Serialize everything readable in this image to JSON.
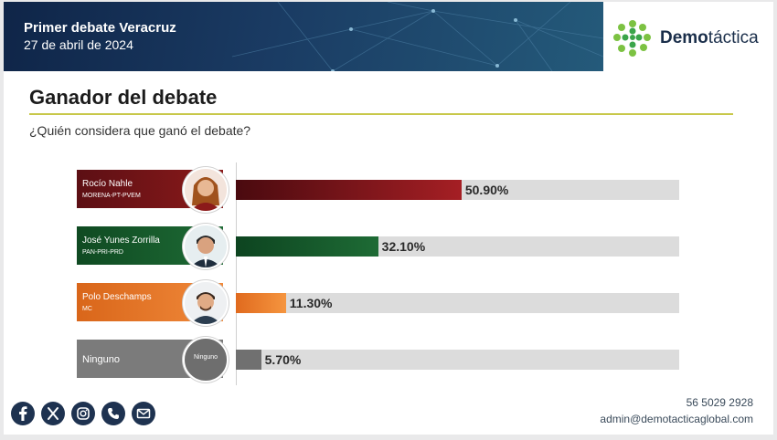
{
  "header": {
    "title": "Primer debate Veracruz",
    "date": "27 de abril de 2024",
    "logo_bold": "Demo",
    "logo_light": "táctica"
  },
  "section": {
    "title": "Ganador del debate",
    "question": "¿Quién considera que ganó el debate?"
  },
  "chart_data": {
    "type": "bar",
    "orientation": "horizontal",
    "title": "Ganador del debate",
    "subtitle": "¿Quién considera que ganó el debate?",
    "categories": [
      "Rocío Nahle",
      "José Yunes Zorrilla",
      "Polo Deschamps",
      "Ninguno"
    ],
    "parties": [
      "MORENA-PT-PVEM",
      "PAN-PRI-PRD",
      "MC",
      ""
    ],
    "values": [
      50.9,
      32.1,
      11.3,
      5.7
    ],
    "value_labels": [
      "50.90%",
      "32.10%",
      "11.30%",
      "5.70%"
    ],
    "xlim": [
      0,
      100
    ],
    "avatar_placeholder": "Ninguno",
    "colors": [
      "#8b1a1a",
      "#1e6b35",
      "#e8782a",
      "#7b7b7b"
    ]
  },
  "footer": {
    "phone": "56 5029 2928",
    "email": "admin@demotacticaglobal.com",
    "social_icons": [
      "facebook-icon",
      "x-icon",
      "instagram-icon",
      "phone-icon",
      "mail-icon"
    ]
  }
}
